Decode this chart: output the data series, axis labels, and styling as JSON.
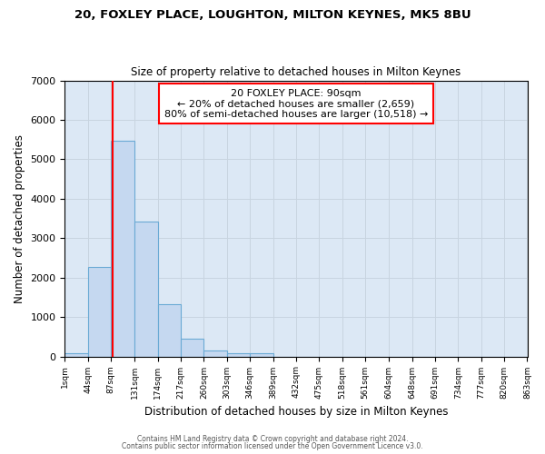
{
  "title1": "20, FOXLEY PLACE, LOUGHTON, MILTON KEYNES, MK5 8BU",
  "title2": "Size of property relative to detached houses in Milton Keynes",
  "xlabel": "Distribution of detached houses by size in Milton Keynes",
  "ylabel": "Number of detached properties",
  "bin_edges": [
    1,
    44,
    87,
    131,
    174,
    217,
    260,
    303,
    346,
    389,
    432,
    475,
    518,
    561,
    604,
    648,
    691,
    734,
    777,
    820,
    863
  ],
  "bar_heights": [
    80,
    2270,
    5480,
    3430,
    1320,
    450,
    155,
    85,
    85,
    0,
    0,
    0,
    0,
    0,
    0,
    0,
    0,
    0,
    0,
    0
  ],
  "bar_color": "#c5d8f0",
  "bar_edge_color": "#6aaad4",
  "vline_x": 90,
  "vline_color": "red",
  "grid_color": "#c8d4e0",
  "plot_bg_color": "#dce8f5",
  "fig_bg_color": "#ffffff",
  "annotation_text": "20 FOXLEY PLACE: 90sqm\n← 20% of detached houses are smaller (2,659)\n80% of semi-detached houses are larger (10,518) →",
  "annotation_box_color": "white",
  "annotation_box_edge": "red",
  "footnote1": "Contains HM Land Registry data © Crown copyright and database right 2024.",
  "footnote2": "Contains public sector information licensed under the Open Government Licence v3.0.",
  "ylim": [
    0,
    7000
  ],
  "tick_labels": [
    "1sqm",
    "44sqm",
    "87sqm",
    "131sqm",
    "174sqm",
    "217sqm",
    "260sqm",
    "303sqm",
    "346sqm",
    "389sqm",
    "432sqm",
    "475sqm",
    "518sqm",
    "561sqm",
    "604sqm",
    "648sqm",
    "691sqm",
    "734sqm",
    "777sqm",
    "820sqm",
    "863sqm"
  ]
}
